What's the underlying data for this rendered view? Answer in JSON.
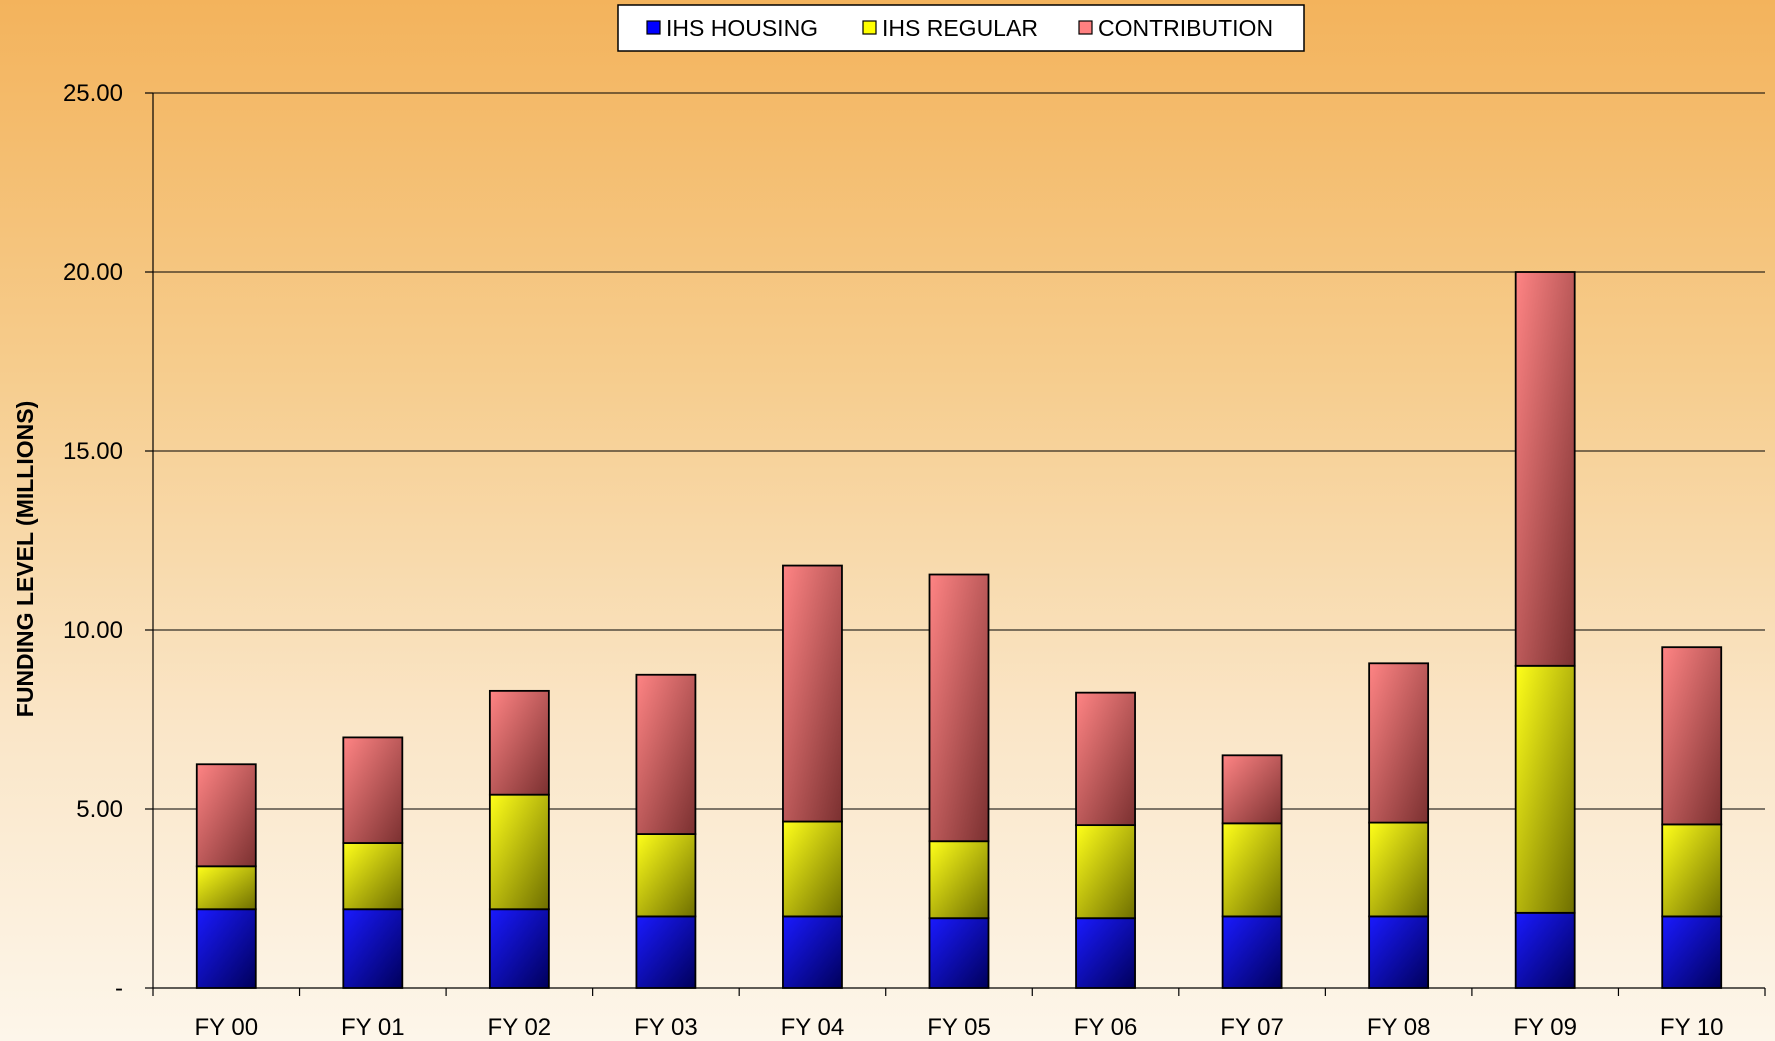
{
  "chart_data": {
    "type": "bar",
    "stacked": true,
    "title": "",
    "xlabel": "",
    "ylabel": "FUNDING LEVEL (MILLIONS)",
    "categories": [
      "FY 00",
      "FY 01",
      "FY 02",
      "FY 03",
      "FY 04",
      "FY 05",
      "FY 06",
      "FY 07",
      "FY 08",
      "FY 09",
      "FY 10"
    ],
    "series": [
      {
        "name": "IHS HOUSING",
        "color": "#0000ff",
        "values": [
          2.2,
          2.2,
          2.2,
          2.0,
          2.0,
          1.95,
          1.95,
          2.0,
          2.0,
          2.1,
          2.0
        ]
      },
      {
        "name": "IHS REGULAR",
        "color": "#ffff00",
        "values": [
          1.2,
          1.85,
          3.2,
          2.3,
          2.65,
          2.15,
          2.6,
          2.6,
          2.62,
          6.9,
          2.57
        ]
      },
      {
        "name": "CONTRIBUTION",
        "color": "#ff8080",
        "values": [
          2.85,
          2.95,
          2.9,
          4.45,
          7.15,
          7.45,
          3.7,
          1.9,
          4.45,
          11.0,
          4.95
        ]
      }
    ],
    "ylim": [
      0,
      25
    ],
    "yticks": [
      {
        "value": 0,
        "label": "-"
      },
      {
        "value": 5,
        "label": "5.00"
      },
      {
        "value": 10,
        "label": "10.00"
      },
      {
        "value": 15,
        "label": "15.00"
      },
      {
        "value": 20,
        "label": "20.00"
      },
      {
        "value": 25,
        "label": "25.00"
      }
    ],
    "grid": true,
    "legend_position": "top-center"
  }
}
